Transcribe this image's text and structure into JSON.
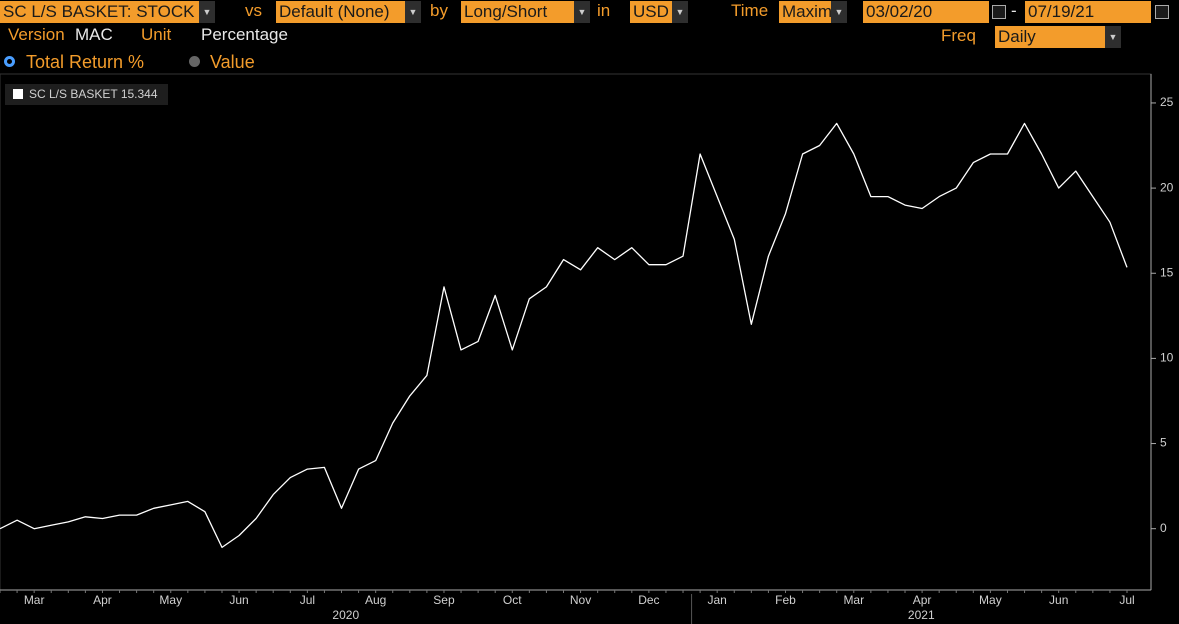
{
  "toolbar": {
    "security": "SC L/S BASKET: STOCK",
    "vs_label": "vs",
    "vs": "Default (None)",
    "by_label": "by",
    "by": "Long/Short",
    "in_label": "in",
    "currency": "USD",
    "time_label": "Time",
    "time": "Maxim",
    "start": "03/02/20",
    "dash": "-",
    "end": "07/19/21"
  },
  "settings": {
    "version_label": "Version",
    "version": "MAC",
    "unit_label": "Unit",
    "unit": "Percentage",
    "freq_label": "Freq",
    "freq": "Daily"
  },
  "radios": [
    "Total Return %",
    "Value"
  ],
  "chart_data": {
    "type": "line",
    "categories": [
      null,
      null,
      "Mar",
      null,
      null,
      null,
      "Apr",
      null,
      null,
      null,
      "May",
      null,
      null,
      null,
      "Jun",
      null,
      null,
      null,
      "Jul",
      null,
      null,
      null,
      "Aug",
      null,
      null,
      null,
      "Sep",
      null,
      null,
      null,
      "Oct",
      null,
      null,
      null,
      "Nov",
      null,
      null,
      null,
      "Dec",
      null,
      null,
      null,
      "Jan",
      null,
      null,
      null,
      "Feb",
      null,
      null,
      null,
      "Mar",
      null,
      null,
      null,
      "Apr",
      null,
      null,
      null,
      "May",
      null,
      null,
      null,
      "Jun",
      null,
      null,
      null,
      "Jul"
    ],
    "years": [
      "2020",
      "2021"
    ],
    "series": [
      {
        "name": "SC L/S BASKET",
        "color": "#ffffff",
        "values": [
          0,
          0.5,
          0,
          0.2,
          0.4,
          0.7,
          0.6,
          0.8,
          0.8,
          1.2,
          1.4,
          1.6,
          1.0,
          -1.1,
          -0.4,
          0.6,
          2.0,
          3.0,
          3.5,
          3.6,
          1.2,
          3.5,
          4.0,
          6.2,
          7.8,
          9.0,
          14.2,
          10.5,
          11.0,
          13.7,
          10.5,
          13.5,
          14.2,
          15.8,
          15.2,
          16.5,
          15.8,
          16.5,
          15.5,
          15.5,
          16.0,
          22.0,
          19.5,
          17.0,
          12.0,
          16.0,
          18.5,
          22.0,
          22.5,
          23.8,
          22.0,
          19.5,
          19.5,
          19.0,
          18.8,
          19.5,
          20.0,
          21.5,
          22.0,
          22.0,
          23.8,
          22.0,
          20.0,
          21.0,
          19.5,
          18.0,
          15.344
        ]
      }
    ],
    "ylim": [
      -3.6,
      26.7
    ],
    "yticks": [
      0,
      5,
      10,
      15,
      20,
      25
    ],
    "grid": false
  }
}
